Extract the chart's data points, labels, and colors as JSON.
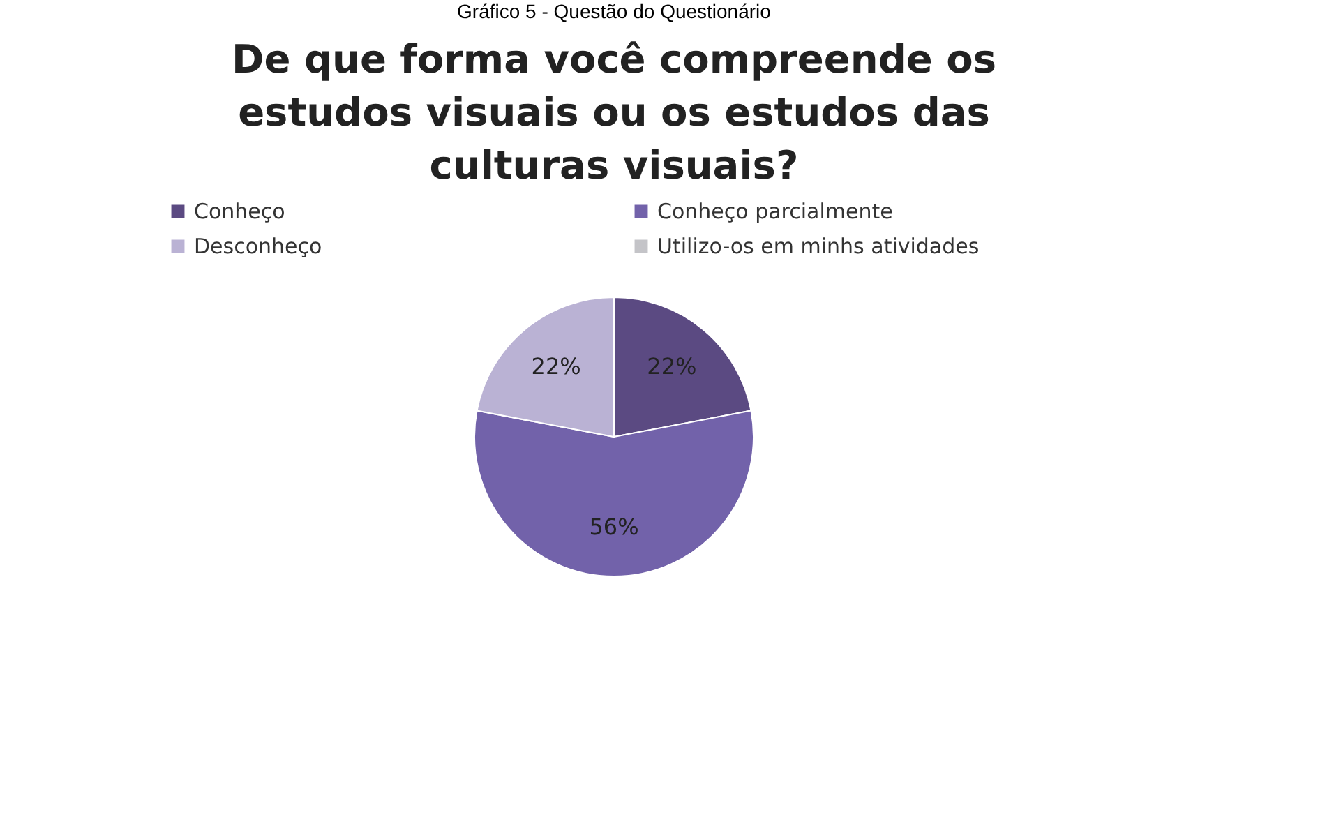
{
  "chart_data": {
    "type": "pie",
    "title": "De que forma você compreende os estudos visuais ou os estudos das culturas visuais?",
    "annotations": [
      "Gráfico 5 - Questão do Questionário"
    ],
    "categories": [
      "Conheço",
      "Conheço parcialmente",
      "Desconheço",
      "Utilizo-os em minhs atividades"
    ],
    "values": [
      22,
      56,
      22,
      0
    ],
    "colors": [
      "#5b4a82",
      "#7262aa",
      "#bab2d4",
      "#c4c4c8"
    ],
    "value_labels": [
      "22%",
      "56%",
      "22%",
      null
    ],
    "legend": "top"
  }
}
